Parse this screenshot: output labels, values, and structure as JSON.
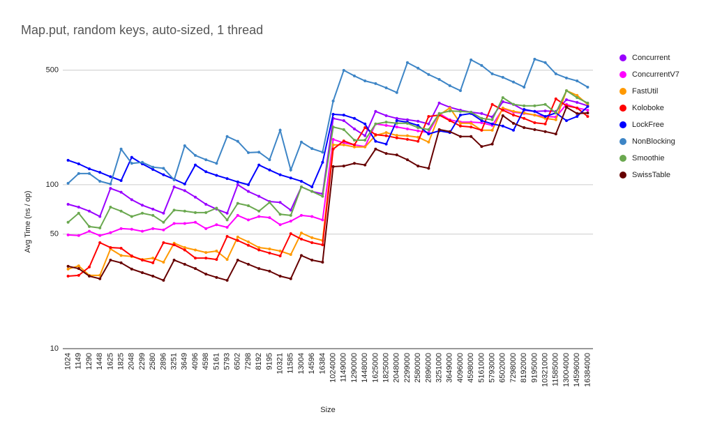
{
  "chart_data": {
    "type": "line",
    "title": "Map.put, random keys, auto-sized, 1 thread",
    "x_label": "Size",
    "y_label": "Avg Time (ns / op)",
    "categories": [
      "1024",
      "1149",
      "1290",
      "1448",
      "1625",
      "1825",
      "2048",
      "2299",
      "2580",
      "2896",
      "3251",
      "3649",
      "4096",
      "4598",
      "5161",
      "5793",
      "6502",
      "7298",
      "8192",
      "9195",
      "10321",
      "11585",
      "13004",
      "14596",
      "16384",
      "1024000",
      "1149000",
      "1290000",
      "1448000",
      "1625000",
      "1825000",
      "2048000",
      "2299000",
      "2580000",
      "2896000",
      "3251000",
      "3649000",
      "4096000",
      "4598000",
      "5161000",
      "5793000",
      "6502000",
      "7298000",
      "8192000",
      "9195000",
      "10321000",
      "11585000",
      "13004000",
      "14596000",
      "16384000"
    ],
    "ylim": [
      10,
      600
    ],
    "yticks": [
      10,
      50,
      100,
      500
    ],
    "log_scale": true,
    "grid": true,
    "legend": "right",
    "series": [
      {
        "name": "Concurrent",
        "color": "#9900ff",
        "values": [
          76,
          73,
          69,
          64,
          95,
          90,
          81,
          75,
          71,
          67,
          97,
          92,
          84,
          76,
          71,
          67,
          100,
          91,
          85,
          79,
          78,
          70,
          97,
          91,
          88,
          254,
          246,
          219,
          199,
          280,
          264,
          254,
          249,
          244,
          235,
          315,
          297,
          285,
          277,
          272,
          259,
          321,
          309,
          285,
          280,
          282,
          280,
          330,
          318,
          303
        ]
      },
      {
        "name": "ConcurrentV7",
        "color": "#ff00ff",
        "values": [
          49.4,
          49,
          52,
          49,
          51,
          54,
          53.5,
          52,
          54,
          53,
          58,
          58,
          59,
          54,
          57,
          55,
          65,
          61,
          64,
          63,
          57,
          60,
          65,
          64,
          61,
          189,
          180,
          175,
          171,
          235,
          230,
          225,
          219,
          213,
          208,
          272,
          249,
          241,
          241,
          239,
          230,
          291,
          277,
          272,
          266,
          261,
          259,
          309,
          294,
          285
        ]
      },
      {
        "name": "FastUtil",
        "color": "#ff9900",
        "values": [
          30.6,
          32,
          28,
          28,
          40.6,
          37,
          36.5,
          35,
          35.7,
          33.7,
          44,
          41.4,
          40,
          38.6,
          39.4,
          35,
          48,
          44.8,
          41.4,
          40.6,
          39.4,
          37.5,
          50.8,
          47.5,
          45.7,
          175,
          175,
          170,
          170,
          200,
          208,
          200,
          199,
          195,
          182,
          266,
          294,
          237,
          237,
          215,
          215,
          294,
          280,
          274,
          266,
          254,
          249,
          375,
          351,
          309
        ]
      },
      {
        "name": "Koloboke",
        "color": "#ff0000",
        "values": [
          27.7,
          28,
          31.5,
          44.3,
          41.4,
          41,
          36.8,
          34.7,
          33.4,
          44.3,
          43,
          40,
          35.7,
          35.7,
          35,
          48.4,
          45.7,
          42.7,
          40,
          38.3,
          36.8,
          50.3,
          46.6,
          44.3,
          43,
          165,
          185,
          175,
          223,
          202,
          199,
          193,
          189,
          184,
          261,
          266,
          246,
          228,
          225,
          215,
          309,
          285,
          266,
          254,
          239,
          235,
          334,
          303,
          294,
          261
        ]
      },
      {
        "name": "LockFree",
        "color": "#0000ff",
        "values": [
          141,
          134,
          125,
          119,
          112,
          106,
          147,
          134,
          124,
          115,
          108,
          101,
          132,
          120,
          114,
          109,
          104,
          100,
          132,
          123,
          115,
          110,
          105,
          97,
          137,
          269,
          266,
          254,
          235,
          184,
          177,
          246,
          241,
          230,
          204,
          213,
          208,
          266,
          272,
          246,
          235,
          228,
          215,
          288,
          280,
          261,
          274,
          246,
          261,
          300
        ]
      },
      {
        "name": "NonBlocking",
        "color": "#3d85c6",
        "values": [
          102,
          117,
          117,
          105,
          101,
          165,
          135,
          137,
          128,
          126,
          107,
          173,
          151,
          142,
          135,
          197,
          184,
          157,
          158,
          142,
          215,
          123,
          182,
          166,
          158,
          324,
          499,
          461,
          430,
          414,
          390,
          365,
          556,
          514,
          470,
          439,
          402,
          375,
          578,
          534,
          475,
          452,
          423,
          394,
          583,
          556,
          475,
          448,
          430,
          394
        ]
      },
      {
        "name": "Smoothie",
        "color": "#6aa84f",
        "values": [
          59,
          67,
          55.6,
          54.5,
          73,
          69,
          64,
          67,
          65,
          59,
          70,
          69,
          67.6,
          67.6,
          72,
          61,
          77,
          74.5,
          69,
          78,
          66,
          65,
          97,
          91,
          85,
          225,
          217,
          187,
          187,
          235,
          241,
          237,
          237,
          223,
          217,
          272,
          282,
          280,
          277,
          254,
          249,
          340,
          309,
          303,
          303,
          309,
          274,
          375,
          340,
          315
        ]
      },
      {
        "name": "SwissTable",
        "color": "#660000",
        "values": [
          31.8,
          30.8,
          27.7,
          26.7,
          34.7,
          33.4,
          30.6,
          29.1,
          27.7,
          26.1,
          34.7,
          32.7,
          30.8,
          28.5,
          27.2,
          26.1,
          34.7,
          32.7,
          30.8,
          29.7,
          27.7,
          26.7,
          37,
          34.7,
          33.7,
          129,
          130,
          135,
          132,
          165,
          155,
          152,
          142,
          130,
          126,
          217,
          211,
          197,
          197,
          171,
          177,
          264,
          237,
          223,
          217,
          211,
          204,
          297,
          272,
          274
        ]
      }
    ]
  }
}
